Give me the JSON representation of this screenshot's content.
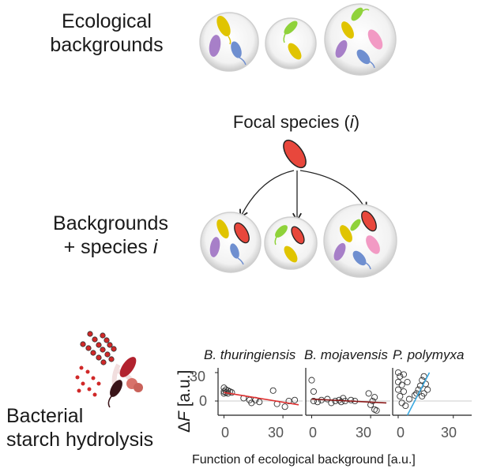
{
  "top": {
    "label_line1": "Ecological",
    "label_line2": "backgrounds"
  },
  "focal": {
    "label_prefix": "Focal species (",
    "label_italic": "i",
    "label_suffix": ")"
  },
  "combined": {
    "label_line1": "Backgrounds",
    "label_line2_prefix": "+ species ",
    "label_line2_italic": "i"
  },
  "bottom": {
    "label_line1": "Bacterial",
    "label_line2": "starch hydrolysis"
  },
  "colors": {
    "yellow": "#e0c400",
    "purple": "#a77fc8",
    "blue": "#6f8fd0",
    "green": "#8fd23a",
    "pink": "#f29ac4",
    "focal_red": "#e8473c",
    "fit_red": "#e03030",
    "fit_darkred": "#8b1a1a",
    "fit_blue": "#3aa8e0"
  },
  "chart": {
    "ylabel_delta": "Δ",
    "ylabel_italic": "F",
    "ylabel_rest": " [a.u.]",
    "xlabel": "Function of ecological background [a.u.]",
    "yticks": [
      "30",
      "0"
    ],
    "xticks": [
      "0",
      "30"
    ]
  },
  "chart_data": [
    {
      "type": "scatter",
      "title": "B. thuringiensis",
      "xlim": [
        -3,
        40
      ],
      "ylim": [
        -15,
        35
      ],
      "points": [
        [
          0,
          14
        ],
        [
          0,
          10
        ],
        [
          0,
          8
        ],
        [
          1,
          12
        ],
        [
          1,
          9
        ],
        [
          2,
          11
        ],
        [
          2,
          8
        ],
        [
          3,
          10
        ],
        [
          4,
          9
        ],
        [
          10,
          3
        ],
        [
          13,
          1
        ],
        [
          14,
          -2
        ],
        [
          16,
          1
        ],
        [
          18,
          -1
        ],
        [
          25,
          11
        ],
        [
          27,
          -3
        ],
        [
          31,
          -6
        ],
        [
          33,
          0
        ],
        [
          36,
          1
        ]
      ],
      "fit": {
        "x": [
          0,
          38
        ],
        "y": [
          9,
          -4
        ],
        "color": "#e03030"
      }
    },
    {
      "type": "scatter",
      "title": "B. mojavensis",
      "xlim": [
        -3,
        40
      ],
      "ylim": [
        -15,
        35
      ],
      "points": [
        [
          0,
          22
        ],
        [
          1,
          10
        ],
        [
          1,
          0
        ],
        [
          3,
          -1
        ],
        [
          5,
          1
        ],
        [
          8,
          2
        ],
        [
          10,
          -2
        ],
        [
          12,
          0
        ],
        [
          14,
          1
        ],
        [
          15,
          -1
        ],
        [
          16,
          3
        ],
        [
          17,
          0
        ],
        [
          20,
          1
        ],
        [
          22,
          0
        ],
        [
          29,
          8
        ],
        [
          30,
          -4
        ],
        [
          31,
          0
        ],
        [
          32,
          -9
        ],
        [
          33,
          -10
        ],
        [
          32,
          4
        ]
      ],
      "fit": {
        "x": [
          0,
          38
        ],
        "y": [
          2,
          -2
        ],
        "color": "#8b1a1a"
      }
    },
    {
      "type": "scatter",
      "title": "P. polymyxa",
      "xlim": [
        -3,
        40
      ],
      "ylim": [
        -15,
        35
      ],
      "points": [
        [
          0,
          30
        ],
        [
          0,
          20
        ],
        [
          0,
          12
        ],
        [
          1,
          26
        ],
        [
          1,
          5
        ],
        [
          2,
          17
        ],
        [
          2,
          -2
        ],
        [
          3,
          28
        ],
        [
          3,
          10
        ],
        [
          4,
          -5
        ],
        [
          5,
          20
        ],
        [
          6,
          2
        ],
        [
          9,
          6
        ],
        [
          10,
          8
        ],
        [
          11,
          12
        ],
        [
          12,
          16
        ],
        [
          13,
          22
        ],
        [
          14,
          26
        ],
        [
          15,
          18
        ],
        [
          14,
          8
        ],
        [
          13,
          5
        ],
        [
          16,
          12
        ]
      ],
      "fit": {
        "x": [
          5,
          17
        ],
        "y": [
          -15,
          30
        ],
        "color": "#3aa8e0"
      }
    }
  ]
}
